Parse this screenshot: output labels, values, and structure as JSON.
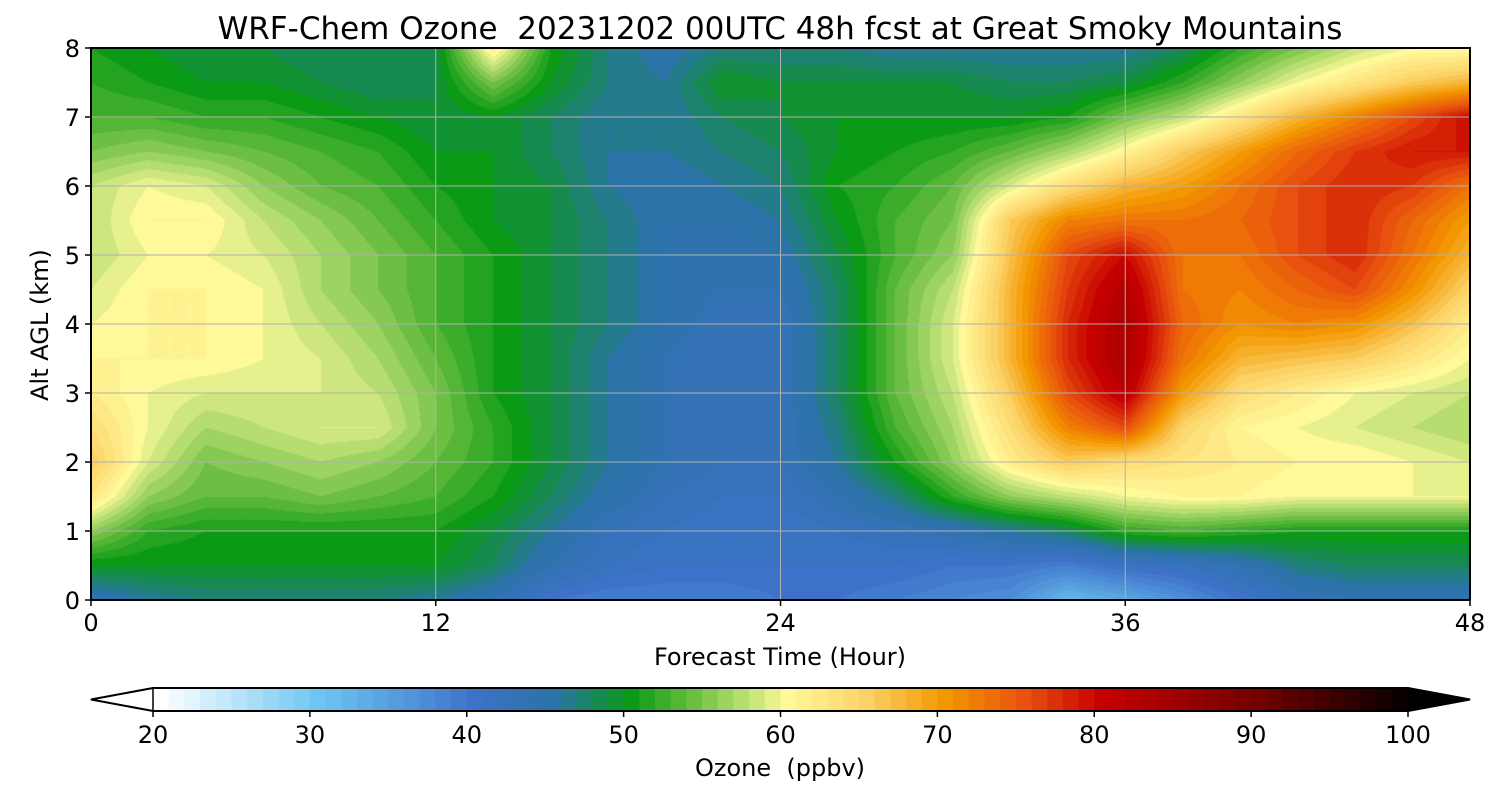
{
  "chart_data": {
    "type": "heatmap",
    "title": "WRF-Chem Ozone  20231202 00UTC 48h fcst at Great Smoky Mountains",
    "xlabel": "Forecast Time (Hour)",
    "ylabel": "Alt AGL (km)",
    "xlim": [
      0,
      48
    ],
    "ylim": [
      0,
      8
    ],
    "xticks": [
      "0",
      "12",
      "24",
      "36",
      "48"
    ],
    "yticks": [
      "0",
      "1",
      "2",
      "3",
      "4",
      "5",
      "6",
      "7",
      "8"
    ],
    "grid": true,
    "x_hours": [
      0,
      2,
      4,
      6,
      8,
      10,
      12,
      14,
      16,
      18,
      20,
      22,
      24,
      26,
      28,
      30,
      32,
      34,
      36,
      38,
      40,
      42,
      44,
      46,
      48
    ],
    "y_km": [
      0,
      0.5,
      1,
      1.5,
      2,
      2.5,
      3,
      3.5,
      4,
      4.5,
      5,
      5.5,
      6,
      6.5,
      7,
      7.5,
      8
    ],
    "z_ozone_ppbv": [
      [
        44,
        46,
        47,
        47,
        47,
        47,
        46,
        44,
        40,
        39,
        39,
        39,
        40,
        40,
        39,
        38,
        37,
        32,
        34,
        37,
        40,
        43,
        44,
        44,
        44
      ],
      [
        50,
        50,
        50,
        50,
        50,
        50,
        50,
        48,
        44,
        42,
        41,
        41,
        41,
        41,
        41,
        40,
        40,
        39,
        41,
        42,
        44,
        47,
        48,
        48,
        48
      ],
      [
        56,
        52,
        51,
        51,
        51,
        51,
        51,
        49,
        46,
        43,
        42,
        41,
        41,
        42,
        43,
        44,
        46,
        48,
        52,
        53,
        52,
        51,
        51,
        51,
        51
      ],
      [
        63,
        56,
        54,
        54,
        55,
        54,
        53,
        51,
        48,
        45,
        43,
        42,
        42,
        44,
        47,
        52,
        56,
        58,
        60,
        61,
        61,
        60,
        60,
        60,
        60
      ],
      [
        66,
        59,
        55,
        56,
        57,
        56,
        54,
        52,
        49,
        46,
        44,
        43,
        43,
        46,
        51,
        56,
        62,
        66,
        64,
        63,
        62,
        61,
        61,
        60,
        59
      ],
      [
        64,
        60,
        57,
        58,
        59,
        59,
        55,
        52,
        49,
        46,
        44,
        43,
        43,
        47,
        53,
        57,
        64,
        72,
        76,
        65,
        61,
        60,
        59,
        58,
        57
      ],
      [
        62,
        60,
        59,
        59,
        59,
        58,
        55,
        51,
        49,
        46,
        44,
        43,
        43,
        48,
        54,
        58,
        66,
        76,
        82,
        70,
        64,
        62,
        60,
        59,
        58
      ],
      [
        61,
        61,
        61,
        60,
        59,
        57,
        54,
        51,
        49,
        46,
        44,
        43,
        43,
        48,
        54,
        59,
        68,
        78,
        84,
        73,
        68,
        67,
        66,
        63,
        60
      ],
      [
        60,
        61,
        61,
        60,
        58,
        56,
        53,
        51,
        49,
        47,
        45,
        43,
        43,
        48,
        54,
        59,
        68,
        78,
        84,
        74,
        71,
        72,
        71,
        67,
        62
      ],
      [
        59,
        61,
        61,
        60,
        57,
        55,
        53,
        51,
        49,
        47,
        45,
        44,
        44,
        48,
        54,
        58,
        68,
        77,
        83,
        73,
        72,
        74,
        76,
        71,
        65
      ],
      [
        58,
        60,
        60,
        59,
        57,
        55,
        53,
        51,
        49,
        47,
        45,
        44,
        45,
        49,
        53,
        56,
        67,
        76,
        80,
        73,
        73,
        76,
        78,
        73,
        68
      ],
      [
        58,
        61,
        61,
        58,
        56,
        54,
        52,
        50,
        49,
        47,
        45,
        45,
        46,
        50,
        53,
        55,
        66,
        72,
        73,
        73,
        74,
        76,
        78,
        74,
        70
      ],
      [
        58,
        60,
        59,
        56,
        54,
        53,
        51,
        50,
        49,
        46,
        45,
        46,
        47,
        51,
        52,
        54,
        59,
        64,
        68,
        70,
        73,
        76,
        78,
        77,
        73
      ],
      [
        55,
        56,
        55,
        54,
        53,
        52,
        50,
        50,
        48,
        46,
        46,
        47,
        48,
        50,
        51,
        52,
        54,
        57,
        61,
        66,
        70,
        74,
        77,
        79,
        79
      ],
      [
        53,
        53,
        52,
        52,
        51,
        50,
        49,
        50,
        48,
        46,
        46,
        48,
        49,
        50,
        50,
        50,
        50,
        51,
        55,
        58,
        63,
        68,
        72,
        76,
        80
      ],
      [
        52,
        51,
        50,
        50,
        49,
        48,
        49,
        55,
        50,
        47,
        46,
        50,
        49,
        49,
        49,
        49,
        48,
        48,
        49,
        52,
        56,
        60,
        63,
        66,
        68
      ],
      [
        51,
        50,
        49,
        49,
        48,
        48,
        49,
        62,
        51,
        47,
        45,
        47,
        47,
        47,
        46,
        46,
        46,
        46,
        46,
        48,
        52,
        55,
        58,
        60,
        60
      ]
    ],
    "colorbar": {
      "label": "Ozone  (ppbv)",
      "min": 20,
      "max": 100,
      "ticks": [
        "20",
        "30",
        "40",
        "50",
        "60",
        "70",
        "80",
        "90",
        "100"
      ],
      "extend": "both",
      "stops": [
        [
          20,
          "#ffffff"
        ],
        [
          30,
          "#6dc6f2"
        ],
        [
          40,
          "#3e72c8"
        ],
        [
          45,
          "#2b73a8"
        ],
        [
          50,
          "#0a9a16"
        ],
        [
          53,
          "#55b535"
        ],
        [
          57,
          "#b5dd70"
        ],
        [
          60,
          "#fff99a"
        ],
        [
          65,
          "#fcd267"
        ],
        [
          70,
          "#f39700"
        ],
        [
          75,
          "#e9520e"
        ],
        [
          80,
          "#c60000"
        ],
        [
          90,
          "#720000"
        ],
        [
          100,
          "#000000"
        ]
      ]
    }
  }
}
